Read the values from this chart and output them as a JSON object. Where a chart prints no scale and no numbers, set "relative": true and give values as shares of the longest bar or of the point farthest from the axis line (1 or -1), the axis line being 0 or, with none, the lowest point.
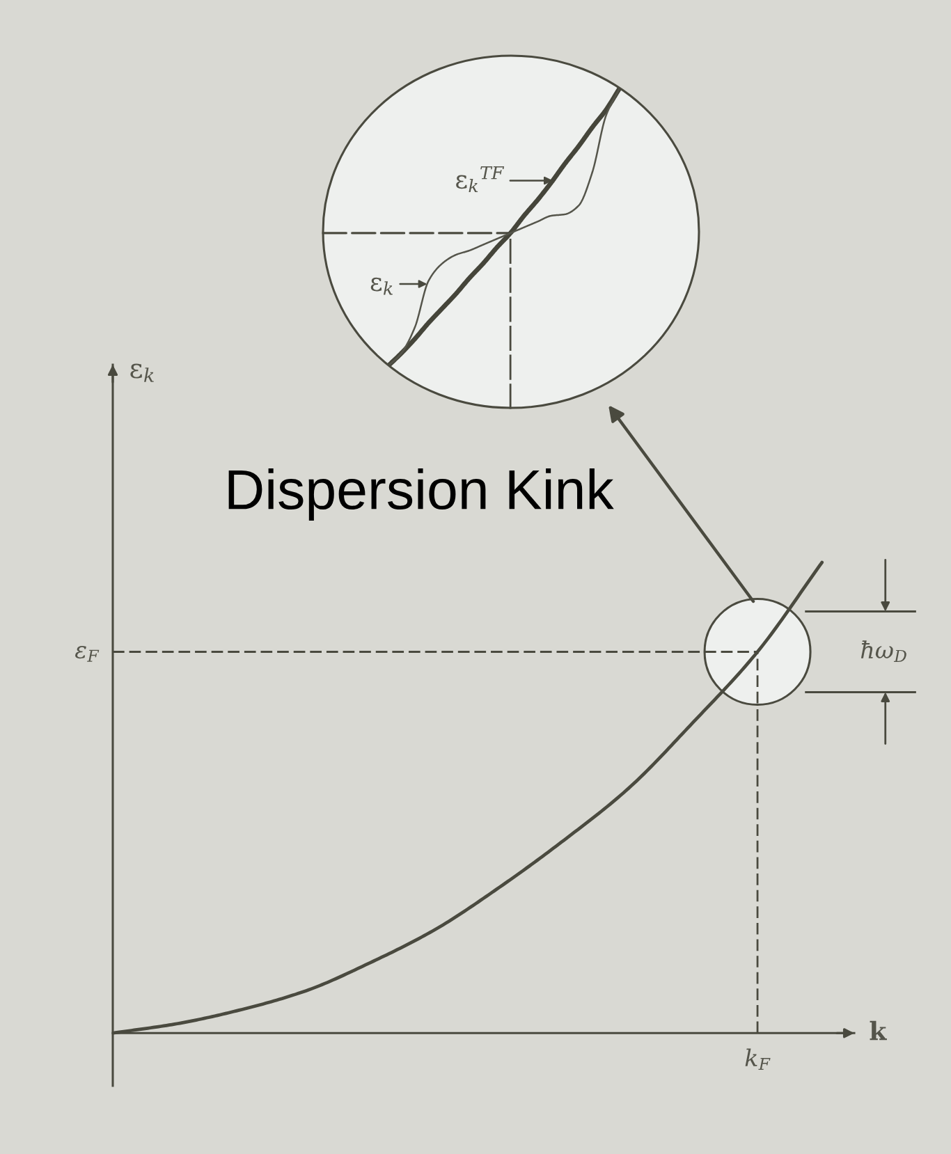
{
  "chart_data": [
    {
      "type": "line",
      "title": "Dispersion Kink",
      "xlabel": "k",
      "ylabel": "ε$_{k}$",
      "relative": true,
      "categories": [
        null,
        null,
        null,
        null,
        null,
        null,
        null,
        null,
        null,
        null,
        null,
        null
      ],
      "values": [
        0,
        0.02,
        0.05,
        0.09,
        0.15,
        0.22,
        0.31,
        0.41,
        0.52,
        0.66,
        0.81,
        1.0
      ],
      "color": "#4a4a3f",
      "ref_lines": [
        {
          "axis": "y",
          "value": 0.81,
          "label": "ε$_{F}$",
          "line_style": "dashed"
        }
      ],
      "annotations": [
        "k$_{F}$",
        "ħω$_{D}$"
      ]
    },
    {
      "type": "line",
      "relative": true,
      "legend": "left",
      "categories": [
        null,
        null,
        null,
        null,
        null,
        null,
        null,
        null,
        null,
        null,
        null,
        null,
        null,
        null,
        null,
        null,
        null,
        null
      ],
      "series": [
        {
          "name": "ε$_{k}$$^{TF}$",
          "color": "#45453a",
          "values": [
            -0.92,
            -0.83,
            -0.73,
            -0.62,
            -0.52,
            -0.42,
            -0.31,
            -0.21,
            -0.1,
            0,
            0.12,
            0.23,
            0.35,
            0.48,
            0.6,
            0.73,
            0.85,
            1.0
          ]
        },
        {
          "name": "ε$_{k}$",
          "color": "#55554b",
          "values": [
            -0.92,
            -0.83,
            -0.65,
            -0.33,
            -0.21,
            -0.15,
            -0.12,
            -0.08,
            -0.04,
            0,
            0.04,
            0.08,
            0.12,
            0.13,
            0.19,
            0.42,
            0.81,
            1.0
          ]
        }
      ],
      "ref_lines": [
        {
          "axis": "y",
          "value": 0,
          "line_style": "dashed"
        }
      ]
    }
  ]
}
